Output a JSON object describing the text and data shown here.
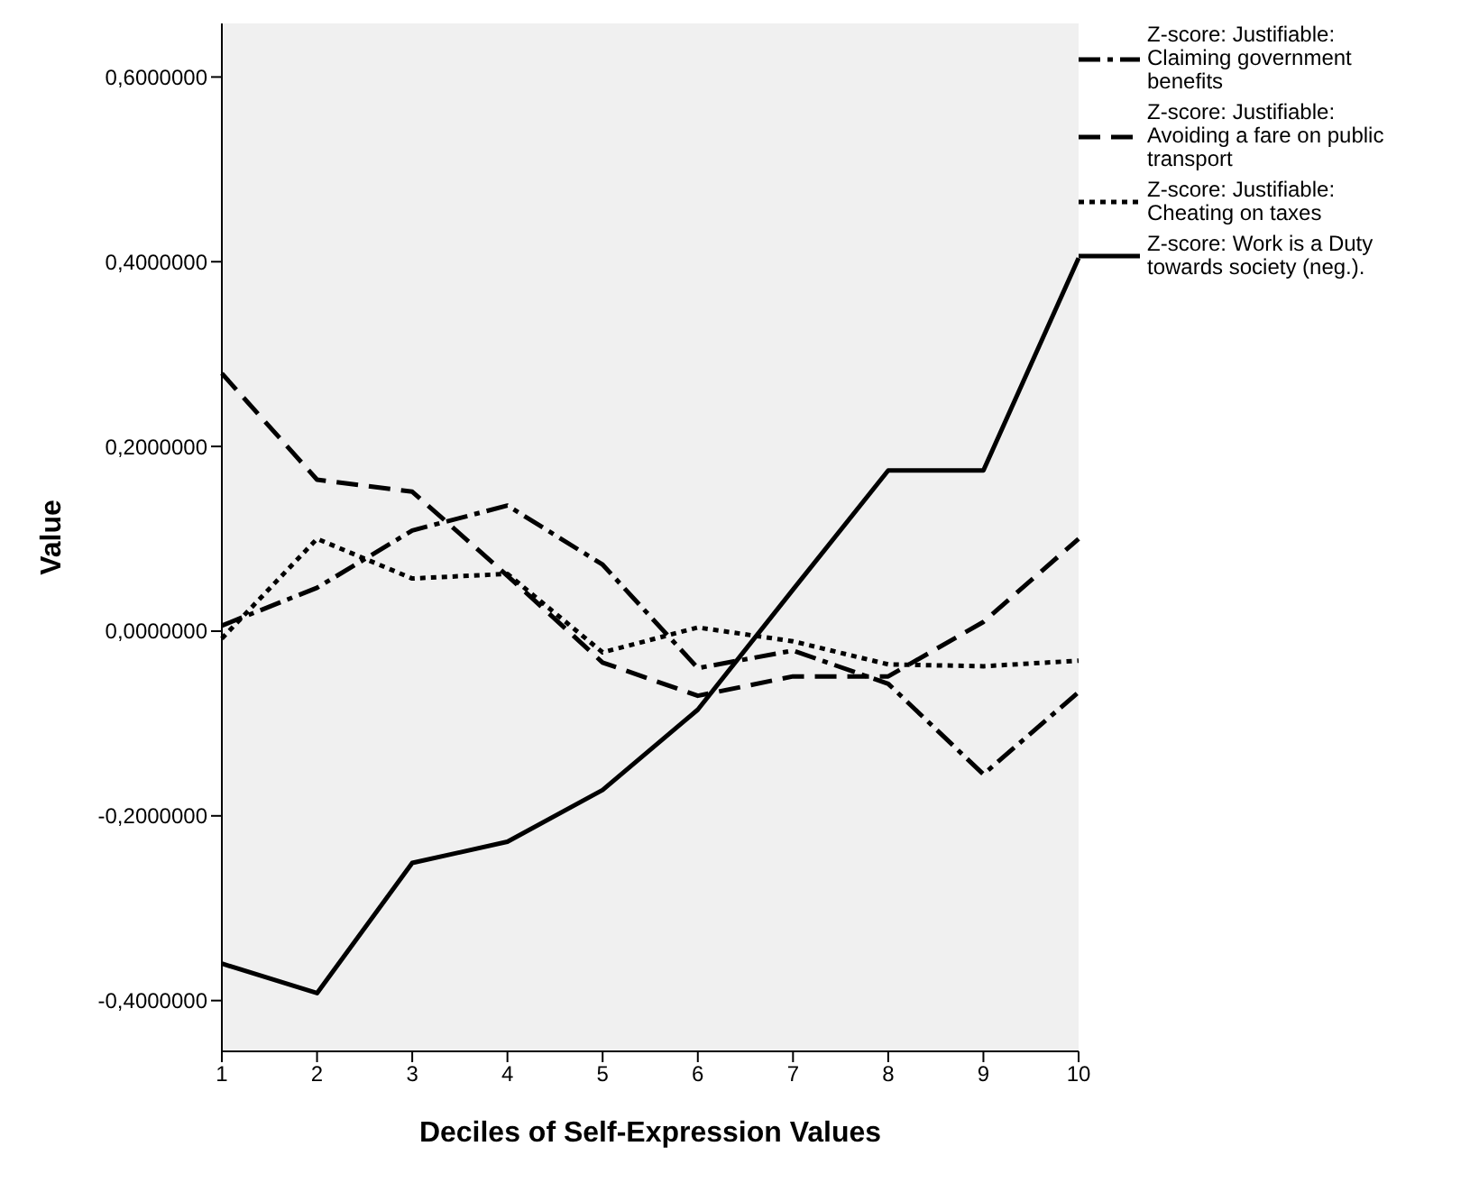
{
  "chart_data": {
    "type": "line",
    "xlabel": "Deciles of Self-Expression Values",
    "ylabel": "Value",
    "categories": [
      "1",
      "2",
      "3",
      "4",
      "5",
      "6",
      "7",
      "8",
      "9",
      "10"
    ],
    "ylim": [
      -0.455,
      0.658
    ],
    "yticks": [
      {
        "value": -0.4,
        "label": "-0,4000000"
      },
      {
        "value": -0.2,
        "label": "-0,2000000"
      },
      {
        "value": 0,
        "label": "0,0000000"
      },
      {
        "value": 0.2,
        "label": "0,2000000"
      },
      {
        "value": 0.4,
        "label": "0,4000000"
      },
      {
        "value": 0.6,
        "label": "0,6000000"
      }
    ],
    "grid": false,
    "legend": "top right",
    "marker": "none",
    "series": [
      {
        "name": "Z-score: Justifiable: Claiming government benefits",
        "color": "#000000",
        "line_style": "dashdot",
        "values": [
          0.006,
          0.047,
          0.109,
          0.136,
          0.072,
          -0.04,
          -0.021,
          -0.057,
          -0.155,
          -0.066
        ]
      },
      {
        "name": "Z-score: Justifiable: Avoiding a fare on public transport",
        "color": "#000000",
        "line_style": "dashed",
        "values": [
          0.279,
          0.164,
          0.151,
          0.06,
          -0.034,
          -0.07,
          -0.049,
          -0.049,
          0.01,
          0.1
        ]
      },
      {
        "name": "Z-score: Justifiable: Cheating on taxes",
        "color": "#000000",
        "line_style": "dotted",
        "values": [
          -0.008,
          0.1,
          0.057,
          0.062,
          -0.023,
          0.004,
          -0.011,
          -0.036,
          -0.038,
          -0.032
        ]
      },
      {
        "name": "Z-score: Work is a Duty towards society (neg.).",
        "color": "#000000",
        "line_style": "solid",
        "values": [
          -0.36,
          -0.392,
          -0.251,
          -0.228,
          -0.172,
          -0.085,
          0.045,
          0.174,
          0.174,
          0.404
        ]
      }
    ]
  }
}
